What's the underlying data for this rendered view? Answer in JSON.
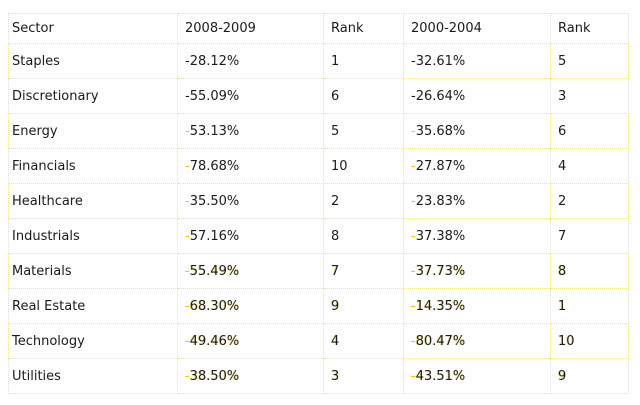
{
  "chart_data": {
    "type": "table",
    "columns": [
      "Sector",
      "2008-2009",
      "Rank",
      "2000-2004",
      "Rank"
    ],
    "rows": [
      [
        "Staples",
        "-28.12%",
        "1",
        "-32.61%",
        "5"
      ],
      [
        "Discretionary",
        "-55.09%",
        "6",
        "-26.64%",
        "3"
      ],
      [
        "Energy",
        "-53.13%",
        "5",
        "-35.68%",
        "6"
      ],
      [
        "Financials",
        "-78.68%",
        "10",
        "-27.87%",
        "4"
      ],
      [
        "Healthcare",
        "-35.50%",
        "2",
        "-23.83%",
        "2"
      ],
      [
        "Industrials",
        "-57.16%",
        "8",
        "-37.38%",
        "7"
      ],
      [
        "Materials",
        "-55.49%",
        "7",
        "-37.73%",
        "8"
      ],
      [
        "Real Estate",
        "-68.30%",
        "9",
        "-14.35%",
        "1"
      ],
      [
        "Technology",
        "-49.46%",
        "4",
        "-80.47%",
        "10"
      ],
      [
        "Utilities",
        "-38.50%",
        "3",
        "-43.51%",
        "9"
      ]
    ],
    "layout_hints": {
      "grid": "dotted",
      "header_row": true
    }
  },
  "colors": {
    "background": "#fefefe",
    "grid_dotted": "#ebe87f",
    "text": "#1b1b1b",
    "negative_sign_artifact": "#e3cf00",
    "artifact_fringe": "#efe690"
  },
  "artifact_rows": {
    "yellow_minus": [
      2,
      3,
      4,
      5,
      6,
      7,
      8,
      9
    ],
    "yellow_fringe": [
      6,
      7,
      8,
      9
    ]
  }
}
